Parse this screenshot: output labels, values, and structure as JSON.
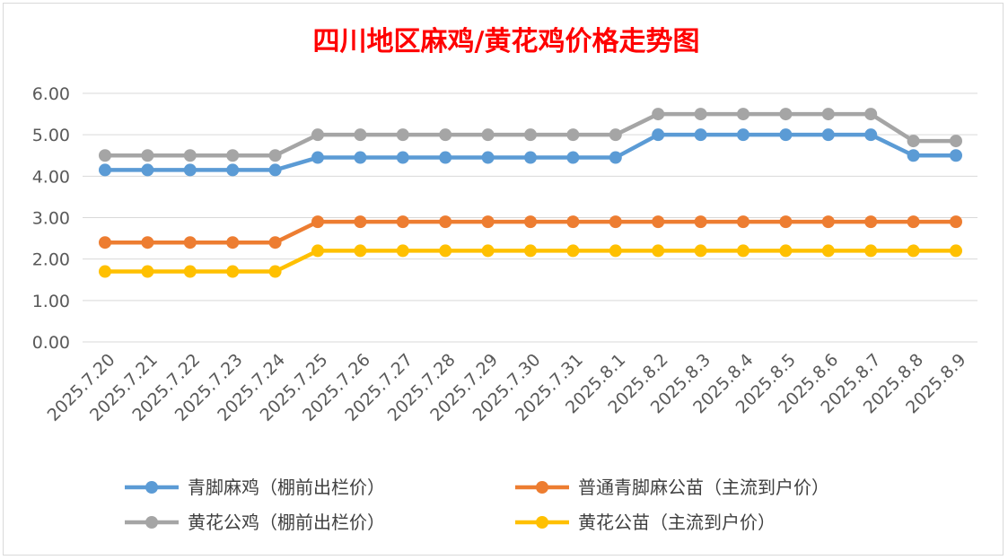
{
  "chart_data": {
    "type": "line",
    "title": "四川地区麻鸡/黄花鸡价格走势图",
    "xlabel": "",
    "ylabel": "",
    "ylim": [
      0,
      6
    ],
    "yticks": [
      "0.00",
      "1.00",
      "2.00",
      "3.00",
      "4.00",
      "5.00",
      "6.00"
    ],
    "grid": true,
    "legend_position": "bottom",
    "categories": [
      "2025.7.20",
      "2025.7.21",
      "2025.7.22",
      "2025.7.23",
      "2025.7.24",
      "2025.7.25",
      "2025.7.26",
      "2025.7.27",
      "2025.7.28",
      "2025.7.29",
      "2025.7.30",
      "2025.7.31",
      "2025.8.1",
      "2025.8.2",
      "2025.8.3",
      "2025.8.4",
      "2025.8.5",
      "2025.8.6",
      "2025.8.7",
      "2025.8.8",
      "2025.8.9"
    ],
    "series": [
      {
        "name": "青脚麻鸡（棚前出栏价）",
        "color": "#5b9bd5",
        "values": [
          4.15,
          4.15,
          4.15,
          4.15,
          4.15,
          4.45,
          4.45,
          4.45,
          4.45,
          4.45,
          4.45,
          4.45,
          4.45,
          5.0,
          5.0,
          5.0,
          5.0,
          5.0,
          5.0,
          4.5,
          4.5
        ]
      },
      {
        "name": "普通青脚麻公苗（主流到户价）",
        "color": "#ed7d31",
        "values": [
          2.4,
          2.4,
          2.4,
          2.4,
          2.4,
          2.9,
          2.9,
          2.9,
          2.9,
          2.9,
          2.9,
          2.9,
          2.9,
          2.9,
          2.9,
          2.9,
          2.9,
          2.9,
          2.9,
          2.9,
          2.9
        ]
      },
      {
        "name": "黄花公鸡（棚前出栏价）",
        "color": "#a5a5a5",
        "values": [
          4.5,
          4.5,
          4.5,
          4.5,
          4.5,
          5.0,
          5.0,
          5.0,
          5.0,
          5.0,
          5.0,
          5.0,
          5.0,
          5.5,
          5.5,
          5.5,
          5.5,
          5.5,
          5.5,
          4.85,
          4.85
        ]
      },
      {
        "name": "黄花公苗（主流到户价）",
        "color": "#ffc000",
        "values": [
          1.7,
          1.7,
          1.7,
          1.7,
          1.7,
          2.2,
          2.2,
          2.2,
          2.2,
          2.2,
          2.2,
          2.2,
          2.2,
          2.2,
          2.2,
          2.2,
          2.2,
          2.2,
          2.2,
          2.2,
          2.2
        ]
      }
    ]
  }
}
